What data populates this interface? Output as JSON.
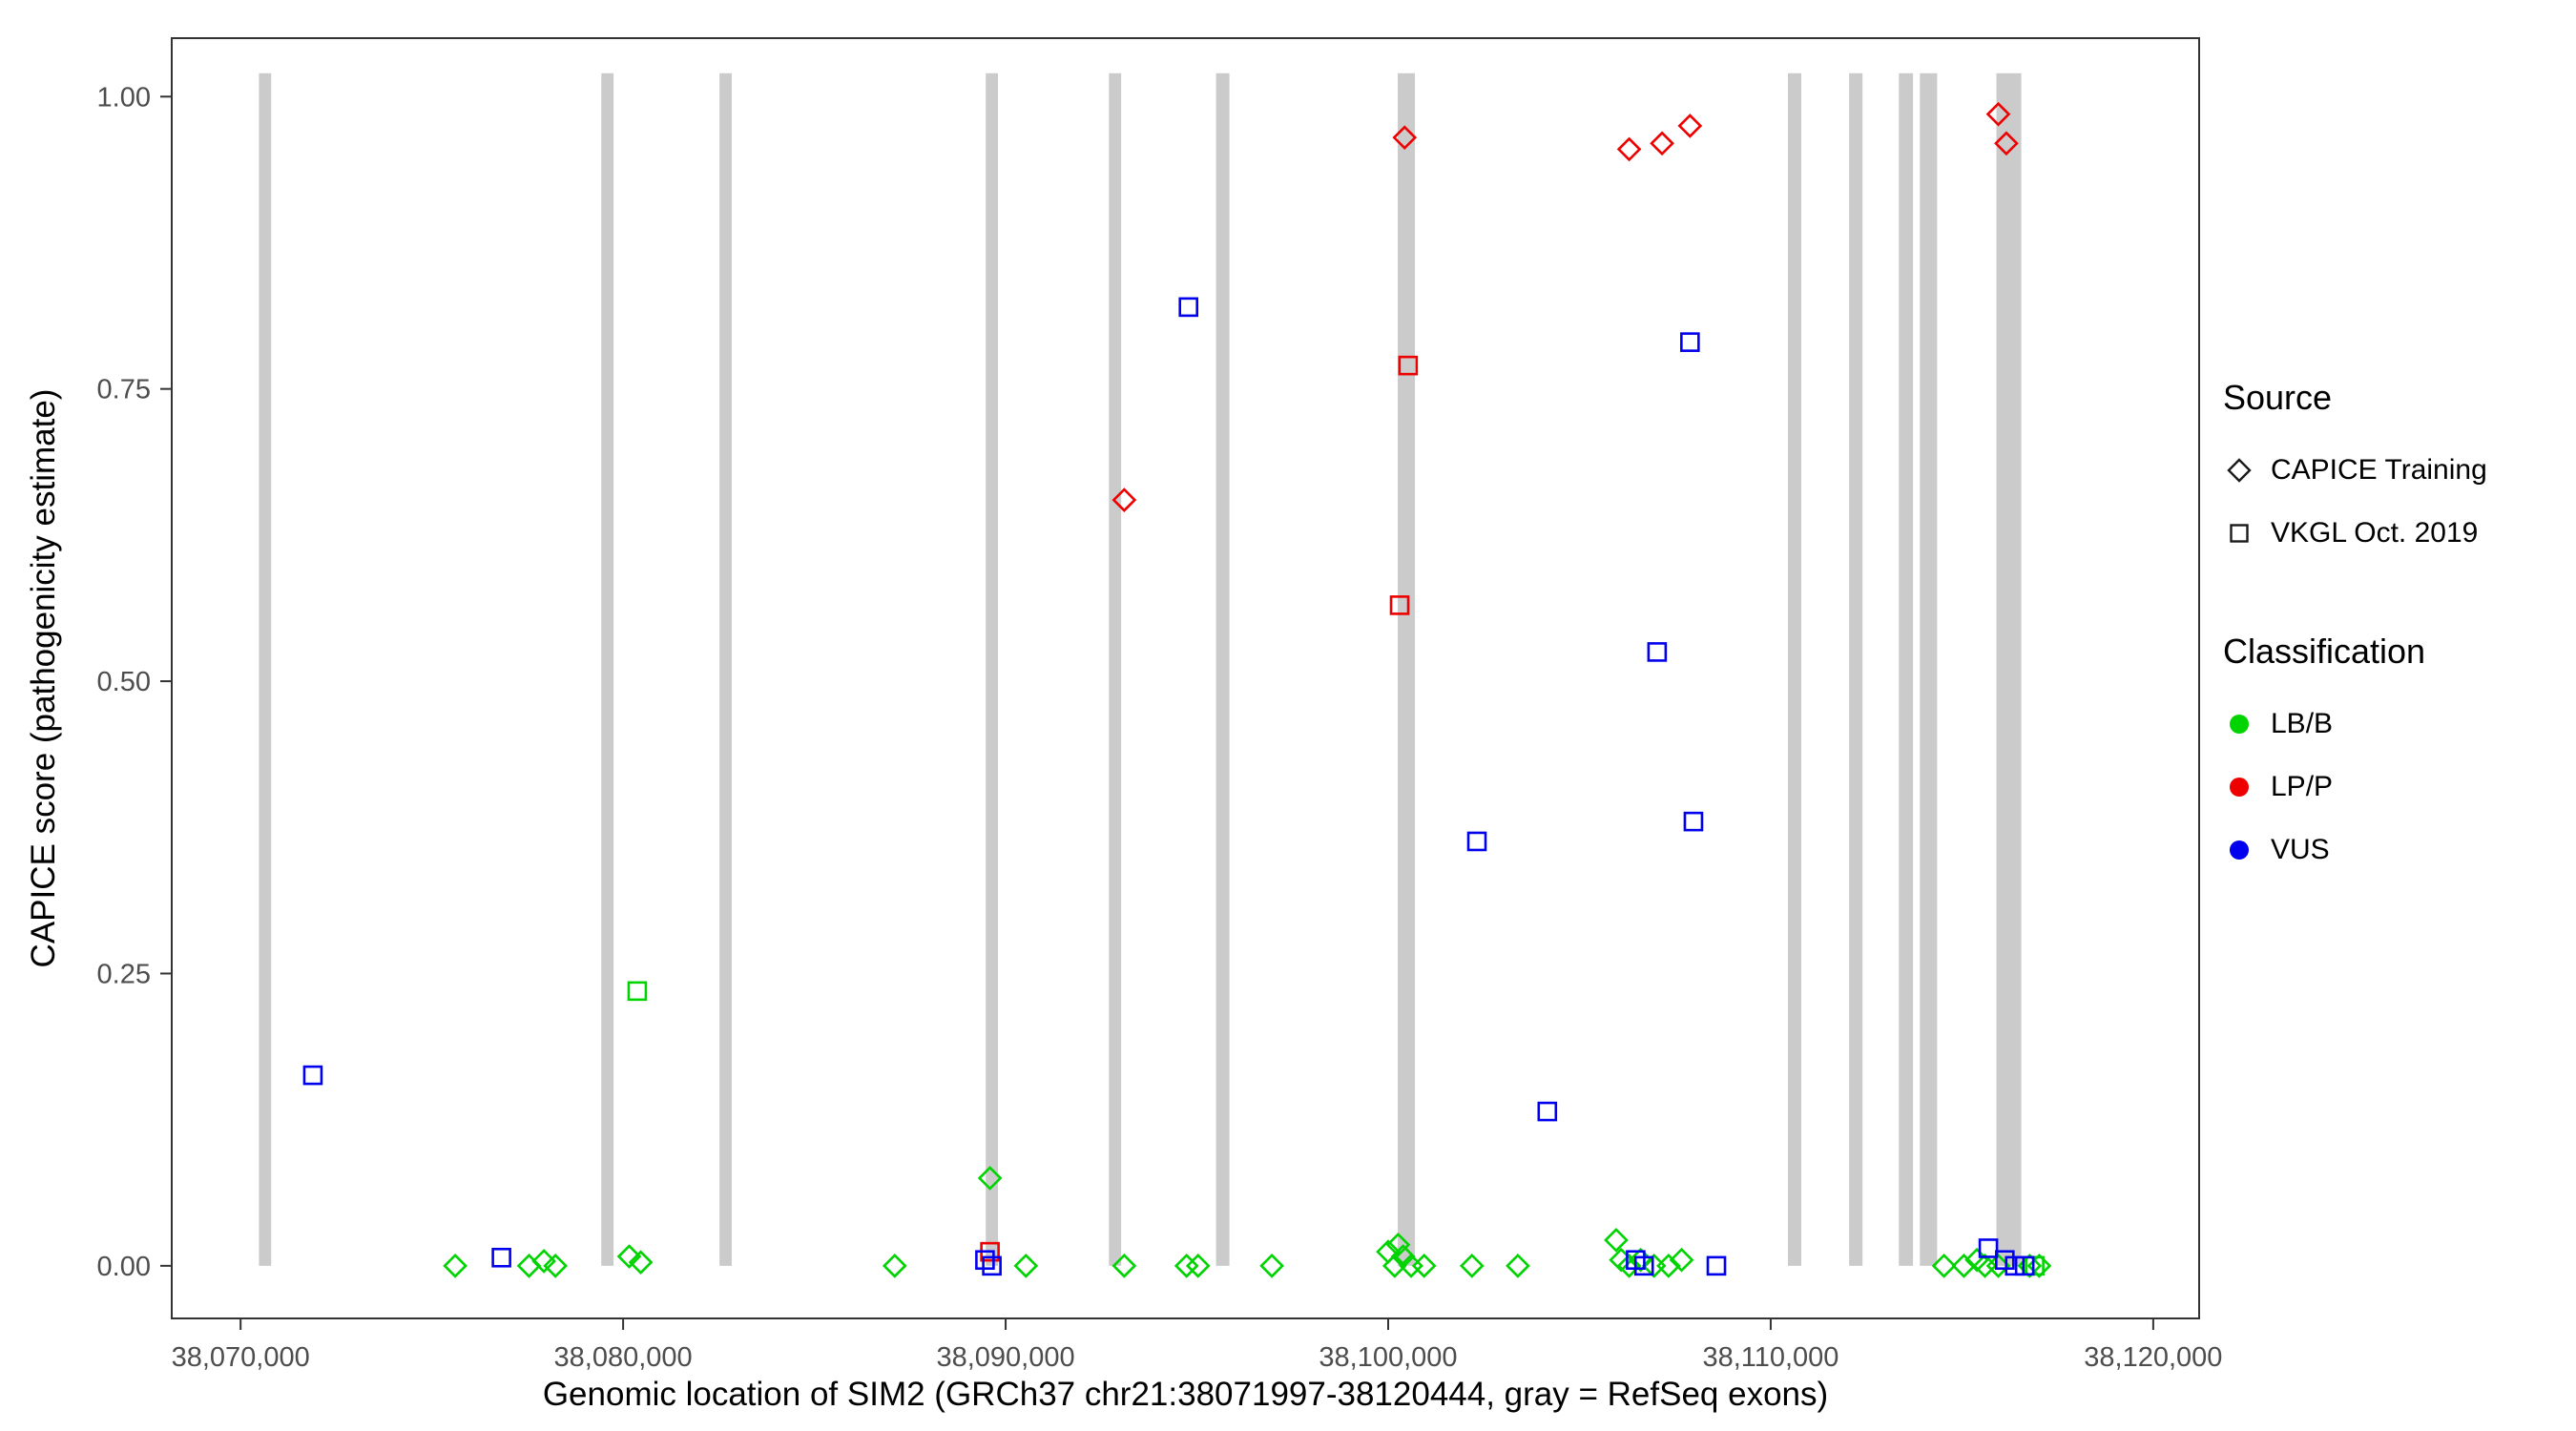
{
  "figure": {
    "x_axis_title": "Genomic location of SIM2 (GRCh37 chr21:38071997-38120444, gray = RefSeq exons)",
    "y_axis_title": "CAPICE score (pathogenicity estimate)"
  },
  "legend": {
    "source": {
      "title": "Source",
      "items": [
        {
          "label": "CAPICE Training",
          "shape": "diamond"
        },
        {
          "label": "VKGL Oct. 2019",
          "shape": "square"
        }
      ]
    },
    "classification": {
      "title": "Classification",
      "items": [
        {
          "label": "LB/B",
          "color": "#00D400"
        },
        {
          "label": "LP/P",
          "color": "#EE0000"
        },
        {
          "label": "VUS",
          "color": "#0000EE"
        }
      ]
    }
  },
  "chart_data": {
    "type": "scatter",
    "title": "",
    "xlabel": "Genomic location of SIM2 (GRCh37 chr21:38071997-38120444, gray = RefSeq exons)",
    "ylabel": "CAPICE score (pathogenicity estimate)",
    "grid": false,
    "legend_position": "right",
    "x_domain": [
      38068200,
      38121200
    ],
    "y_domain": [
      -0.045,
      1.05
    ],
    "x_ticks": [
      {
        "value": 38070000,
        "label": "38,070,000"
      },
      {
        "value": 38080000,
        "label": "38,080,000"
      },
      {
        "value": 38090000,
        "label": "38,090,000"
      },
      {
        "value": 38100000,
        "label": "38,100,000"
      },
      {
        "value": 38110000,
        "label": "38,110,000"
      },
      {
        "value": 38120000,
        "label": "38,120,000"
      }
    ],
    "y_ticks": [
      {
        "value": 0.0,
        "label": "0.00"
      },
      {
        "value": 0.25,
        "label": "0.25"
      },
      {
        "value": 0.5,
        "label": "0.50"
      },
      {
        "value": 0.75,
        "label": "0.75"
      },
      {
        "value": 1.0,
        "label": "1.00"
      }
    ],
    "exon_color": "#CBCBCB",
    "exon_y": [
      0,
      1.02
    ],
    "exons": [
      [
        38070480,
        38070800
      ],
      [
        38079430,
        38079750
      ],
      [
        38082520,
        38082840
      ],
      [
        38089480,
        38089800
      ],
      [
        38092700,
        38093020
      ],
      [
        38095500,
        38095850
      ],
      [
        38100250,
        38100700
      ],
      [
        38110450,
        38110800
      ],
      [
        38112050,
        38112400
      ],
      [
        38113350,
        38113720
      ],
      [
        38113900,
        38114350
      ],
      [
        38115900,
        38116550
      ]
    ],
    "series": [
      {
        "name": "CAPICE Training / LB/B",
        "source": "CAPICE Training",
        "classification": "LB/B",
        "shape": "diamond",
        "color": "#00D400",
        "points": [
          [
            38075610,
            0
          ],
          [
            38077540,
            0
          ],
          [
            38077930,
            0.004
          ],
          [
            38078230,
            0
          ],
          [
            38080160,
            0.008
          ],
          [
            38080460,
            0.003
          ],
          [
            38087100,
            0
          ],
          [
            38089590,
            0.075
          ],
          [
            38090530,
            0
          ],
          [
            38093100,
            0
          ],
          [
            38094730,
            0
          ],
          [
            38095030,
            0
          ],
          [
            38096960,
            0
          ],
          [
            38100000,
            0.012
          ],
          [
            38100170,
            0
          ],
          [
            38100260,
            0.018
          ],
          [
            38100390,
            0.008
          ],
          [
            38100600,
            0
          ],
          [
            38100940,
            0
          ],
          [
            38102190,
            0
          ],
          [
            38103390,
            0
          ],
          [
            38105960,
            0.022
          ],
          [
            38106090,
            0.005
          ],
          [
            38106300,
            0
          ],
          [
            38106600,
            0.005
          ],
          [
            38106950,
            0
          ],
          [
            38107330,
            0
          ],
          [
            38107670,
            0.005
          ],
          [
            38114530,
            0
          ],
          [
            38115050,
            0
          ],
          [
            38115390,
            0.005
          ],
          [
            38115600,
            0
          ],
          [
            38115950,
            0
          ],
          [
            38116770,
            0
          ],
          [
            38117020,
            0
          ]
        ]
      },
      {
        "name": "CAPICE Training / LP/P",
        "source": "CAPICE Training",
        "classification": "LP/P",
        "shape": "diamond",
        "color": "#EE0000",
        "points": [
          [
            38093100,
            0.655
          ],
          [
            38100430,
            0.965
          ],
          [
            38106300,
            0.955
          ],
          [
            38107160,
            0.96
          ],
          [
            38107890,
            0.975
          ],
          [
            38115950,
            0.985
          ],
          [
            38116160,
            0.96
          ]
        ]
      },
      {
        "name": "VKGL Oct. 2019 / LB/B",
        "source": "VKGL Oct. 2019",
        "classification": "LB/B",
        "shape": "square",
        "color": "#00D400",
        "points": [
          [
            38080370,
            0.235
          ],
          [
            38116900,
            0
          ]
        ]
      },
      {
        "name": "VKGL Oct. 2019 / LP/P",
        "source": "VKGL Oct. 2019",
        "classification": "LP/P",
        "shape": "square",
        "color": "#EE0000",
        "points": [
          [
            38089590,
            0.012
          ],
          [
            38100300,
            0.565
          ],
          [
            38100520,
            0.77
          ]
        ]
      },
      {
        "name": "VKGL Oct. 2019 / VUS",
        "source": "VKGL Oct. 2019",
        "classification": "VUS",
        "shape": "square",
        "color": "#0000EE",
        "points": [
          [
            38071890,
            0.163
          ],
          [
            38076820,
            0.007
          ],
          [
            38089460,
            0.005
          ],
          [
            38089640,
            0
          ],
          [
            38094780,
            0.82
          ],
          [
            38102320,
            0.363
          ],
          [
            38104160,
            0.132
          ],
          [
            38106470,
            0.005
          ],
          [
            38106690,
            0
          ],
          [
            38107030,
            0.525
          ],
          [
            38107890,
            0.79
          ],
          [
            38107980,
            0.38
          ],
          [
            38108580,
            0
          ],
          [
            38115690,
            0.015
          ],
          [
            38116120,
            0.005
          ],
          [
            38116380,
            0
          ],
          [
            38116640,
            0
          ]
        ]
      }
    ]
  }
}
